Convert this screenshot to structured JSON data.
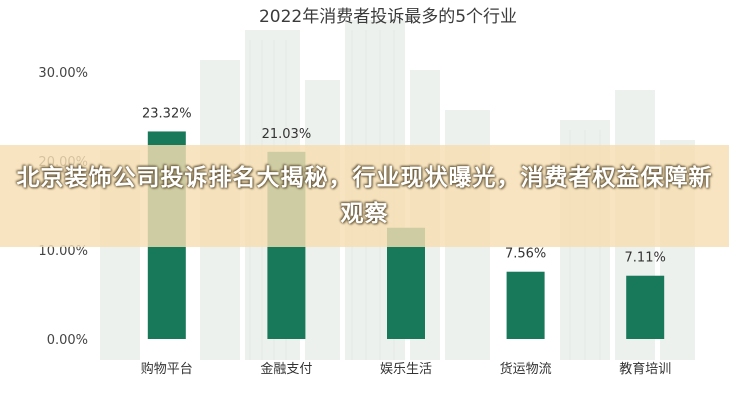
{
  "overlay": {
    "headline": "北京装饰公司投诉排名大揭秘，行业现状曝光，消费者权益保障新观察"
  },
  "chart_data": {
    "type": "bar",
    "title": "2022年消费者投诉最多的5个行业",
    "categories": [
      "购物平台",
      "金融支付",
      "娱乐生活",
      "货运物流",
      "教育培训"
    ],
    "values": [
      23.32,
      21.03,
      12.5,
      7.56,
      7.11
    ],
    "value_labels": [
      "23.32%",
      "21.03%",
      "",
      "7.56%",
      "7.11%"
    ],
    "yticks": [
      "0.00%",
      "10.00%",
      "20.00%",
      "30.00%"
    ],
    "ylim": [
      0,
      30
    ],
    "grid": false,
    "bar_color": "#17785a",
    "xlabel": "",
    "ylabel": ""
  }
}
